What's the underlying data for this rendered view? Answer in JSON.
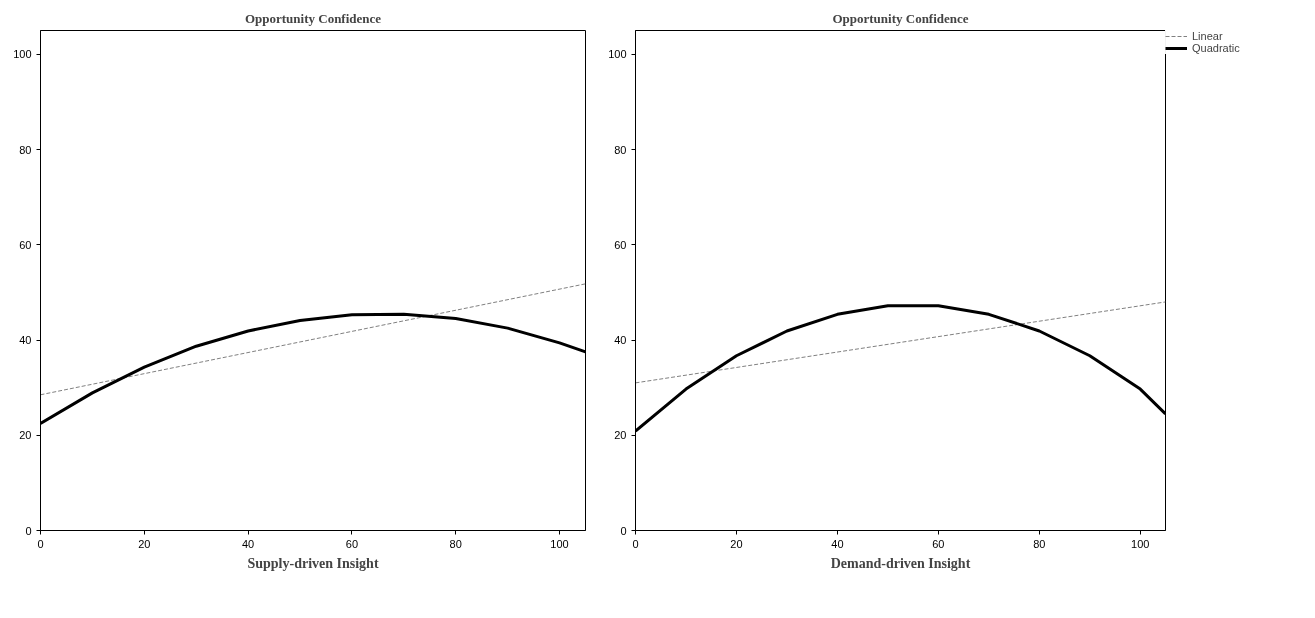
{
  "chart_data": [
    {
      "type": "line",
      "title": "Opportunity Confidence",
      "xlabel": "Supply-driven Insight",
      "xlim": [
        0,
        105
      ],
      "ylim": [
        0,
        105
      ],
      "xticks": [
        0,
        20,
        40,
        60,
        80,
        100
      ],
      "yticks": [
        0,
        20,
        40,
        60,
        80,
        100
      ],
      "grid": false,
      "legend": false,
      "series": [
        {
          "color": "#808080",
          "line_style": "dashed",
          "x": [
            0,
            105
          ],
          "values": [
            28.5,
            51.8
          ]
        },
        {
          "color": "#000000",
          "line_style": "solid",
          "x": [
            0,
            10,
            20,
            30,
            40,
            50,
            60,
            70,
            80,
            90,
            100,
            105
          ],
          "values": [
            22.5,
            28.9,
            34.3,
            38.7,
            41.9,
            44.1,
            45.3,
            45.4,
            44.5,
            42.5,
            39.4,
            37.5
          ]
        }
      ]
    },
    {
      "type": "line",
      "title": "Opportunity Confidence",
      "xlabel": "Demand-driven Insight",
      "xlim": [
        0,
        105
      ],
      "ylim": [
        0,
        105
      ],
      "xticks": [
        0,
        20,
        40,
        60,
        80,
        100
      ],
      "yticks": [
        0,
        20,
        40,
        60,
        80,
        100
      ],
      "grid": false,
      "legend": "top right",
      "series": [
        {
          "name": "Linear",
          "color": "#808080",
          "line_style": "dashed",
          "x": [
            0,
            105
          ],
          "values": [
            31.0,
            48.0
          ]
        },
        {
          "name": "Quadratic",
          "color": "#000000",
          "line_style": "solid",
          "x": [
            0,
            10,
            20,
            30,
            40,
            50,
            60,
            70,
            80,
            90,
            100,
            105
          ],
          "values": [
            20.9,
            29.7,
            36.7,
            41.9,
            45.4,
            47.2,
            47.2,
            45.4,
            41.9,
            36.7,
            29.7,
            24.5
          ]
        }
      ]
    }
  ]
}
